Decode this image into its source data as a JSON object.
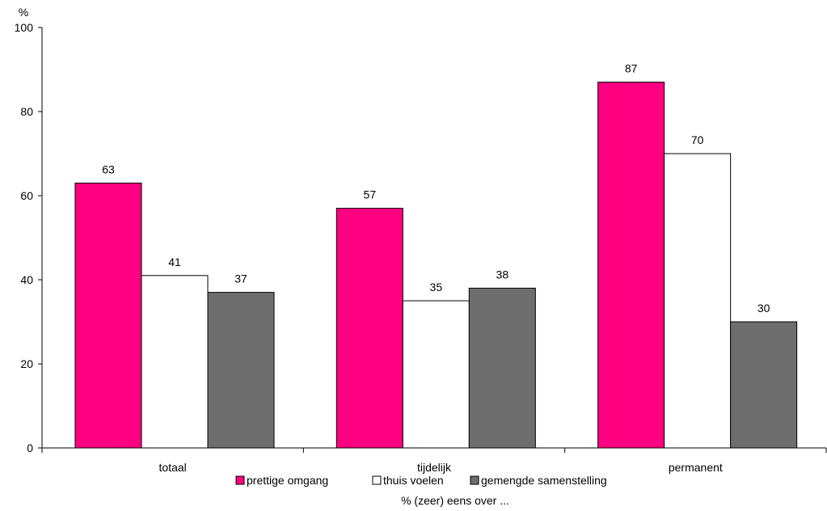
{
  "chart_data": {
    "type": "bar",
    "ylabel": "%",
    "xlabel": "% (zeer) eens over ...",
    "ylim": [
      0,
      100
    ],
    "yticks": [
      "0",
      "20",
      "40",
      "60",
      "80",
      "100"
    ],
    "grid": false,
    "legend_position": "bottom",
    "categories": [
      "totaal",
      "tijdelijk",
      "permanent"
    ],
    "series": [
      {
        "name": "prettige omgang",
        "values": [
          63,
          57,
          87
        ],
        "color": "#ff0080"
      },
      {
        "name": "thuis voelen",
        "values": [
          41,
          35,
          70
        ],
        "color": "#ffffff"
      },
      {
        "name": "gemengde samenstelling",
        "values": [
          37,
          38,
          30
        ],
        "color": "#6e6e6e"
      }
    ]
  }
}
